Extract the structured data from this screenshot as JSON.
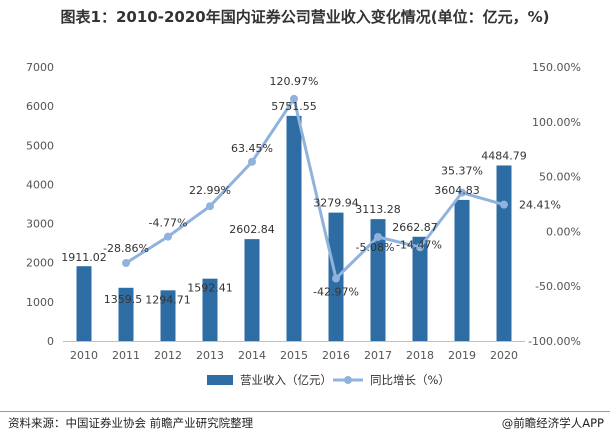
{
  "title": "图表1：2010-2020年国内证券公司营业收入变化情况(单位：亿元，%)",
  "source": "资料来源：中国证券业协会 前瞻产业研究院整理",
  "brand": "@前瞻经济学人APP",
  "chart_data": {
    "type": "bar",
    "categories": [
      "2010",
      "2011",
      "2012",
      "2013",
      "2014",
      "2015",
      "2016",
      "2017",
      "2018",
      "2019",
      "2020"
    ],
    "series": [
      {
        "name": "营业收入（亿元）",
        "type": "bar",
        "axis": "left",
        "color": "#2e6da4",
        "values": [
          1911.02,
          1359.5,
          1294.71,
          1592.41,
          2602.84,
          5751.55,
          3279.94,
          3113.28,
          2662.87,
          3604.83,
          4484.79
        ],
        "labels": [
          "1911.02",
          "1359.5",
          "1294.71",
          "1592.41",
          "2602.84",
          "5751.55",
          "3279.94",
          "3113.28",
          "2662.87",
          "3604.83",
          "4484.79"
        ]
      },
      {
        "name": "同比增长（%）",
        "type": "line",
        "axis": "right",
        "color": "#8fb3dd",
        "values": [
          null,
          -28.86,
          -4.77,
          22.99,
          63.45,
          120.97,
          -42.97,
          -5.08,
          -14.47,
          35.37,
          24.41
        ],
        "labels": [
          "",
          "-28.86%",
          "-4.77%",
          "22.99%",
          "63.45%",
          "120.97%",
          "-42.97%",
          "-5.08%",
          "-14.47%",
          "35.37%",
          "24.41%"
        ]
      }
    ],
    "y_left": {
      "min": 0,
      "max": 7000,
      "ticks": [
        0,
        1000,
        2000,
        3000,
        4000,
        5000,
        6000,
        7000
      ],
      "tick_labels": [
        "0",
        "1000",
        "2000",
        "3000",
        "4000",
        "5000",
        "6000",
        "7000"
      ]
    },
    "y_right": {
      "min": -100,
      "max": 150,
      "ticks": [
        -100,
        -50,
        0,
        50,
        100,
        150
      ],
      "tick_labels": [
        "-100.00%",
        "-50.00%",
        "0.00%",
        "50.00%",
        "100.00%",
        "150.00%"
      ]
    },
    "grid": false,
    "legend": {
      "position": "bottom",
      "entries": [
        "营业收入（亿元）",
        "同比增长（%）"
      ]
    }
  }
}
